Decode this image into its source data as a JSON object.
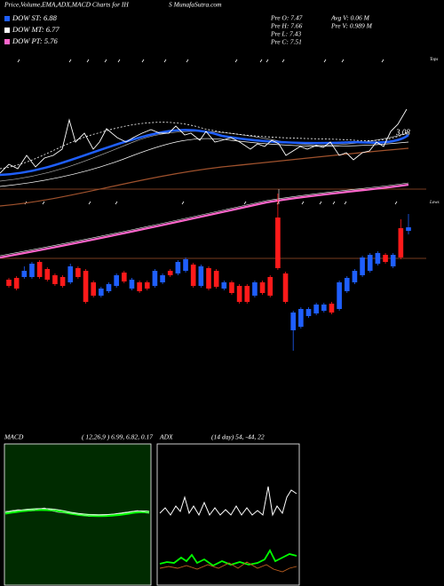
{
  "header": {
    "title": "Price,Volume,EMA,ADX,MACD Charts for IH",
    "site": "S MunafaSutra.com",
    "legend": [
      {
        "label": "DOW ST: 6.88",
        "color": "#1f5fff"
      },
      {
        "label": "DOW MT: 6.77",
        "color": "#ffffff"
      },
      {
        "label": "DOW PT: 5.76",
        "color": "#ff66cc"
      }
    ],
    "stats": [
      "Pre  O: 7.47",
      "Pre  H: 7.66",
      "Pre  L: 7.43",
      "Pre  C: 7.51"
    ],
    "volume": [
      "Avg V: 0.06  M",
      "Pre  V: 0.989 M"
    ]
  },
  "price_panel": {
    "marker_label": "3.08",
    "tops_label": "Tops",
    "lows_label": "Lows"
  },
  "chart_data": {
    "type": "candlestick",
    "up_color": "#1f5fff",
    "down_color": "#ff1a1a",
    "ylim": [
      6.07,
      7.89
    ],
    "ohlc": [
      [
        6.92,
        6.94,
        6.83,
        6.85
      ],
      [
        6.94,
        6.96,
        6.8,
        6.82
      ],
      [
        6.95,
        7.07,
        6.93,
        7.02
      ],
      [
        6.95,
        7.12,
        6.93,
        7.1
      ],
      [
        7.12,
        7.14,
        6.93,
        6.95
      ],
      [
        7.04,
        7.06,
        6.9,
        6.92
      ],
      [
        6.97,
        6.99,
        6.85,
        6.87
      ],
      [
        6.95,
        6.97,
        6.83,
        6.85
      ],
      [
        6.89,
        7.1,
        6.87,
        7.07
      ],
      [
        7.05,
        7.07,
        6.93,
        6.95
      ],
      [
        7.02,
        7.04,
        6.65,
        6.67
      ],
      [
        6.89,
        6.91,
        6.72,
        6.74
      ],
      [
        6.74,
        6.84,
        6.72,
        6.82
      ],
      [
        6.79,
        6.89,
        6.77,
        6.87
      ],
      [
        6.85,
        6.99,
        6.83,
        6.97
      ],
      [
        7.0,
        7.02,
        6.88,
        6.9
      ],
      [
        6.82,
        6.94,
        6.8,
        6.92
      ],
      [
        6.89,
        6.91,
        6.77,
        6.79
      ],
      [
        6.89,
        6.91,
        6.8,
        6.82
      ],
      [
        6.85,
        7.04,
        6.83,
        7.02
      ],
      [
        6.89,
        6.99,
        6.87,
        6.97
      ],
      [
        7.02,
        7.04,
        6.95,
        6.97
      ],
      [
        6.99,
        7.14,
        6.97,
        7.12
      ],
      [
        7.02,
        7.17,
        7.0,
        7.15
      ],
      [
        7.09,
        7.11,
        6.83,
        6.85
      ],
      [
        6.85,
        7.09,
        6.83,
        7.07
      ],
      [
        7.05,
        7.07,
        6.8,
        6.82
      ],
      [
        7.02,
        7.04,
        6.82,
        6.84
      ],
      [
        6.82,
        6.91,
        6.8,
        6.89
      ],
      [
        6.89,
        6.91,
        6.75,
        6.77
      ],
      [
        6.85,
        6.87,
        6.65,
        6.67
      ],
      [
        6.85,
        6.87,
        6.65,
        6.67
      ],
      [
        6.74,
        6.91,
        6.72,
        6.89
      ],
      [
        6.89,
        6.91,
        6.75,
        6.77
      ],
      [
        6.95,
        6.97,
        6.72,
        6.74
      ],
      [
        7.62,
        7.89,
        7.03,
        7.05
      ],
      [
        6.99,
        7.01,
        6.65,
        6.67
      ],
      [
        6.35,
        6.57,
        6.12,
        6.55
      ],
      [
        6.39,
        6.61,
        6.37,
        6.59
      ],
      [
        6.51,
        6.61,
        6.49,
        6.59
      ],
      [
        6.54,
        6.66,
        6.52,
        6.64
      ],
      [
        6.57,
        6.66,
        6.55,
        6.64
      ],
      [
        6.65,
        6.67,
        6.53,
        6.55
      ],
      [
        6.59,
        6.91,
        6.57,
        6.89
      ],
      [
        6.79,
        6.96,
        6.77,
        6.94
      ],
      [
        6.89,
        7.04,
        6.87,
        7.02
      ],
      [
        6.97,
        7.19,
        6.95,
        7.17
      ],
      [
        7.02,
        7.22,
        7.0,
        7.2
      ],
      [
        7.1,
        7.24,
        7.08,
        7.22
      ],
      [
        7.2,
        7.22,
        7.1,
        7.12
      ],
      [
        7.07,
        7.22,
        7.05,
        7.2
      ],
      [
        7.5,
        7.6,
        7.15,
        7.17
      ],
      [
        7.47,
        7.66,
        7.43,
        7.51
      ]
    ]
  },
  "macd_panel": {
    "label": "MACD",
    "params": "( 12,26,9 ) 6.99, 6.82, 0.17"
  },
  "adx_panel": {
    "label": "ADX",
    "params": "(14  day) 54,  -44,  22"
  }
}
